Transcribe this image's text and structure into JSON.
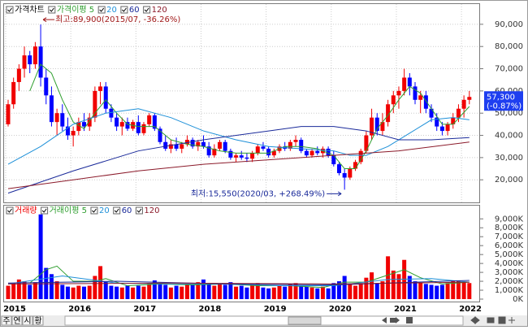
{
  "chart_data": [
    {
      "type": "candlestick",
      "categories": [
        "2015",
        null,
        null,
        null,
        null,
        null,
        null,
        null,
        null,
        null,
        null,
        null,
        "2016",
        null,
        null,
        null,
        null,
        null,
        null,
        null,
        null,
        null,
        null,
        null,
        "2017",
        null,
        null,
        null,
        null,
        null,
        null,
        null,
        null,
        null,
        null,
        null,
        "2018",
        null,
        null,
        null,
        null,
        null,
        null,
        null,
        null,
        null,
        null,
        null,
        "2019",
        null,
        null,
        null,
        null,
        null,
        null,
        null,
        null,
        null,
        null,
        null,
        "2020",
        null,
        null,
        null,
        null,
        null,
        null,
        null,
        null,
        null,
        null,
        null,
        "2021",
        null,
        null,
        null,
        null,
        null,
        null,
        null,
        null,
        null,
        null,
        null,
        "2022",
        null
      ],
      "ylim": [
        10200,
        99100
      ],
      "yticks": [
        {
          "value": 20000,
          "label": "20,000"
        },
        {
          "value": 30000,
          "label": "30,000"
        },
        {
          "value": 40000,
          "label": "40,000"
        },
        {
          "value": 50000,
          "label": "50,000"
        },
        {
          "value": 60000,
          "label": "60,000"
        },
        {
          "value": 70000,
          "label": "70,000"
        },
        {
          "value": 80000,
          "label": "80,000"
        },
        {
          "value": 90000,
          "label": "90,000"
        }
      ],
      "grid": true,
      "up_color": "#f00000",
      "down_color": "#0000ff",
      "series": [
        {
          "name": "가격차트",
          "color": "#000000",
          "ohlc": [
            [
              45000,
              56000,
              44000,
              54000
            ],
            [
              54000,
              66000,
              52000,
              64000
            ],
            [
              64000,
              72000,
              60000,
              70000
            ],
            [
              70000,
              80000,
              66000,
              76000
            ],
            [
              76000,
              78000,
              68000,
              72000
            ],
            [
              72000,
              82000,
              70000,
              80000
            ],
            [
              80000,
              89900,
              62000,
              66000
            ],
            [
              66000,
              70000,
              54000,
              58000
            ],
            [
              58000,
              62000,
              44000,
              46000
            ],
            [
              46000,
              52000,
              40000,
              50000
            ],
            [
              50000,
              54000,
              42000,
              44000
            ],
            [
              44000,
              48000,
              38000,
              40000
            ],
            [
              40000,
              44000,
              35000,
              42000
            ],
            [
              42000,
              48000,
              40000,
              46000
            ],
            [
              46000,
              50000,
              42000,
              44000
            ],
            [
              44000,
              50000,
              42000,
              48000
            ],
            [
              48000,
              62000,
              46000,
              60000
            ],
            [
              60000,
              64000,
              54000,
              62000
            ],
            [
              62000,
              64000,
              50000,
              52000
            ],
            [
              52000,
              54000,
              46000,
              48000
            ],
            [
              48000,
              50000,
              42000,
              44000
            ],
            [
              44000,
              48000,
              40000,
              46000
            ],
            [
              46000,
              48000,
              42000,
              43000
            ],
            [
              43000,
              47000,
              42000,
              46000
            ],
            [
              46000,
              49000,
              40000,
              41000
            ],
            [
              41000,
              46000,
              40000,
              45000
            ],
            [
              45000,
              50000,
              44000,
              49000
            ],
            [
              49000,
              50000,
              42000,
              43000
            ],
            [
              43000,
              44000,
              36000,
              37000
            ],
            [
              37000,
              40000,
              33000,
              34000
            ],
            [
              34000,
              38000,
              32000,
              36000
            ],
            [
              36000,
              39000,
              33000,
              34000
            ],
            [
              34000,
              37000,
              32000,
              36000
            ],
            [
              36000,
              40000,
              35000,
              38000
            ],
            [
              38000,
              39000,
              34000,
              35000
            ],
            [
              35000,
              38000,
              33000,
              37000
            ],
            [
              37000,
              40000,
              34000,
              35000
            ],
            [
              35000,
              37000,
              30000,
              31000
            ],
            [
              31000,
              36000,
              30000,
              34000
            ],
            [
              34000,
              38000,
              33000,
              37000
            ],
            [
              37000,
              38000,
              32000,
              33000
            ],
            [
              33000,
              34000,
              29000,
              30000
            ],
            [
              30000,
              32000,
              28000,
              31000
            ],
            [
              31000,
              33000,
              29000,
              30000
            ],
            [
              30000,
              32000,
              28000,
              29500
            ],
            [
              29500,
              33000,
              28000,
              32000
            ],
            [
              32000,
              36000,
              31000,
              35000
            ],
            [
              35000,
              37000,
              33000,
              34000
            ],
            [
              34000,
              35000,
              30000,
              31000
            ],
            [
              31000,
              34000,
              30000,
              33000
            ],
            [
              33000,
              36000,
              32000,
              35000
            ],
            [
              35000,
              37000,
              33000,
              34000
            ],
            [
              34000,
              38000,
              33000,
              37000
            ],
            [
              37000,
              40000,
              35000,
              38000
            ],
            [
              38000,
              39000,
              32000,
              33000
            ],
            [
              33000,
              34000,
              30000,
              31000
            ],
            [
              31000,
              34000,
              30000,
              33000
            ],
            [
              33000,
              35000,
              31000,
              32000
            ],
            [
              32000,
              35000,
              30000,
              34000
            ],
            [
              34000,
              35000,
              30000,
              31000
            ],
            [
              31000,
              33000,
              26000,
              27000
            ],
            [
              27000,
              28000,
              22000,
              23000
            ],
            [
              23000,
              25000,
              15550,
              21000
            ],
            [
              21000,
              26000,
              20000,
              25000
            ],
            [
              25000,
              29000,
              24000,
              28000
            ],
            [
              28000,
              34000,
              27000,
              33000
            ],
            [
              33000,
              42000,
              32000,
              40000
            ],
            [
              40000,
              52000,
              38000,
              48000
            ],
            [
              48000,
              50000,
              40000,
              42000
            ],
            [
              42000,
              50000,
              40000,
              46000
            ],
            [
              46000,
              56000,
              44000,
              54000
            ],
            [
              54000,
              60000,
              50000,
              58000
            ],
            [
              58000,
              62000,
              52000,
              60000
            ],
            [
              60000,
              70000,
              58000,
              66000
            ],
            [
              66000,
              68000,
              58000,
              62000
            ],
            [
              62000,
              64000,
              54000,
              56000
            ],
            [
              56000,
              60000,
              50000,
              58000
            ],
            [
              58000,
              60000,
              50000,
              52000
            ],
            [
              52000,
              54000,
              46000,
              48000
            ],
            [
              48000,
              50000,
              42000,
              44000
            ],
            [
              44000,
              46000,
              40000,
              42000
            ],
            [
              42000,
              46000,
              40000,
              45000
            ],
            [
              45000,
              50000,
              43000,
              48000
            ],
            [
              48000,
              54000,
              46000,
              52000
            ],
            [
              52000,
              58000,
              48000,
              56000
            ],
            [
              56000,
              60000,
              54000,
              57300
            ]
          ]
        },
        {
          "name": "가격이평 5",
          "color": "#2e9e2e",
          "x": [
            4,
            6,
            8,
            10,
            12,
            14,
            16,
            18,
            20,
            22,
            24,
            27,
            30,
            33,
            36,
            39,
            42,
            45,
            48,
            51,
            54,
            57,
            60,
            62,
            64,
            66,
            68,
            70,
            72,
            74,
            76,
            78,
            80,
            82,
            85
          ],
          "values": [
            60000,
            72000,
            68000,
            56000,
            46000,
            43000,
            50000,
            56000,
            50000,
            45000,
            44000,
            44000,
            38000,
            36000,
            35000,
            33000,
            32000,
            32000,
            32000,
            35000,
            35000,
            34000,
            31000,
            25000,
            25000,
            33000,
            43000,
            49000,
            56000,
            62000,
            59000,
            52000,
            45000,
            45000,
            53000
          ]
        },
        {
          "name": "20",
          "color": "#1e90d8",
          "x": [
            0,
            6,
            12,
            18,
            24,
            30,
            36,
            42,
            48,
            54,
            60,
            63,
            66,
            70,
            74,
            78,
            82,
            85
          ],
          "values": [
            27000,
            35000,
            45000,
            50000,
            52000,
            48000,
            42000,
            38000,
            35000,
            34000,
            33000,
            31000,
            31000,
            35000,
            41000,
            47000,
            48000,
            47000
          ]
        },
        {
          "name": "60",
          "color": "#1a2a9a",
          "x": [
            0,
            12,
            24,
            36,
            48,
            54,
            60,
            66,
            72,
            78,
            85
          ],
          "values": [
            14000,
            24000,
            33000,
            38000,
            42000,
            44000,
            44000,
            42000,
            38000,
            38000,
            39000
          ]
        },
        {
          "name": "120",
          "color": "#8b1a2a",
          "x": [
            0,
            12,
            24,
            36,
            48,
            60,
            72,
            85
          ],
          "values": [
            16000,
            20000,
            24000,
            27000,
            29000,
            31000,
            33000,
            37000
          ]
        }
      ],
      "last_price": {
        "value": 57300,
        "label": "57,300",
        "change": "(-0.87%)"
      },
      "annotations": [
        "최고:89,900(2015/07, -36.26%)",
        "최저:15,550(2020/03, +268.49%)"
      ]
    },
    {
      "type": "bar",
      "ylim": [
        0,
        10300
      ],
      "yticks": [
        {
          "value": 0,
          "label": "0K"
        },
        {
          "value": 1000,
          "label": "1,000K"
        },
        {
          "value": 2000,
          "label": "2,000K"
        },
        {
          "value": 3000,
          "label": "3,000K"
        },
        {
          "value": 4000,
          "label": "4,000K"
        },
        {
          "value": 5000,
          "label": "5,000K"
        },
        {
          "value": 6000,
          "label": "6,000K"
        },
        {
          "value": 7000,
          "label": "7,000K"
        },
        {
          "value": 8000,
          "label": "8,000K"
        },
        {
          "value": 9000,
          "label": "9,000K"
        }
      ],
      "series": [
        {
          "name": "거래량",
          "color": "#f00000",
          "values": [
            1500,
            1800,
            2200,
            2000,
            1600,
            1900,
            9500,
            3500,
            2800,
            2000,
            1600,
            1400,
            1300,
            1500,
            1400,
            1500,
            2600,
            3700,
            2000,
            1500,
            1400,
            1300,
            1500,
            1300,
            1500,
            1400,
            1700,
            2100,
            1800,
            1600,
            1300,
            1500,
            1400,
            1700,
            1600,
            1900,
            2200,
            1800,
            1500,
            1700,
            1600,
            1900,
            1400,
            1500,
            1300,
            1700,
            1800,
            1300,
            1200,
            1300,
            1500,
            1400,
            1600,
            1800,
            1500,
            1400,
            1300,
            1200,
            1400,
            1200,
            1800,
            2000,
            2600,
            1700,
            1500,
            1800,
            2400,
            3000,
            1800,
            2000,
            4800,
            3200,
            2800,
            4400,
            2600,
            2000,
            1800,
            1700,
            1600,
            1500,
            1600,
            1800,
            2000,
            2100,
            1900,
            1800
          ]
        },
        {
          "name": "거래이평 5",
          "color": "#2e9e2e",
          "x": [
            4,
            7,
            9,
            12,
            16,
            18,
            22,
            28,
            34,
            40,
            46,
            52,
            58,
            62,
            66,
            70,
            73,
            76,
            80,
            85
          ],
          "values": [
            1800,
            3300,
            3700,
            2000,
            2000,
            2300,
            1500,
            1700,
            1600,
            1700,
            1500,
            1500,
            1300,
            1900,
            1900,
            2700,
            3300,
            2400,
            1700,
            1900
          ]
        },
        {
          "name": "20",
          "color": "#1e90d8",
          "x": [
            0,
            10,
            20,
            30,
            40,
            50,
            60,
            70,
            78,
            85
          ],
          "values": [
            1700,
            2600,
            1800,
            1700,
            1700,
            1500,
            1500,
            2200,
            2300,
            1900
          ]
        },
        {
          "name": "60",
          "color": "#1a2a9a",
          "x": [
            0,
            20,
            40,
            60,
            85
          ],
          "values": [
            1800,
            2000,
            1700,
            1600,
            2100
          ]
        },
        {
          "name": "120",
          "color": "#8b1a2a",
          "x": [
            0,
            30,
            60,
            85
          ],
          "values": [
            1700,
            1800,
            1700,
            1900
          ]
        }
      ]
    }
  ],
  "toolbar": [
    "주",
    "연",
    "시",
    "황"
  ]
}
